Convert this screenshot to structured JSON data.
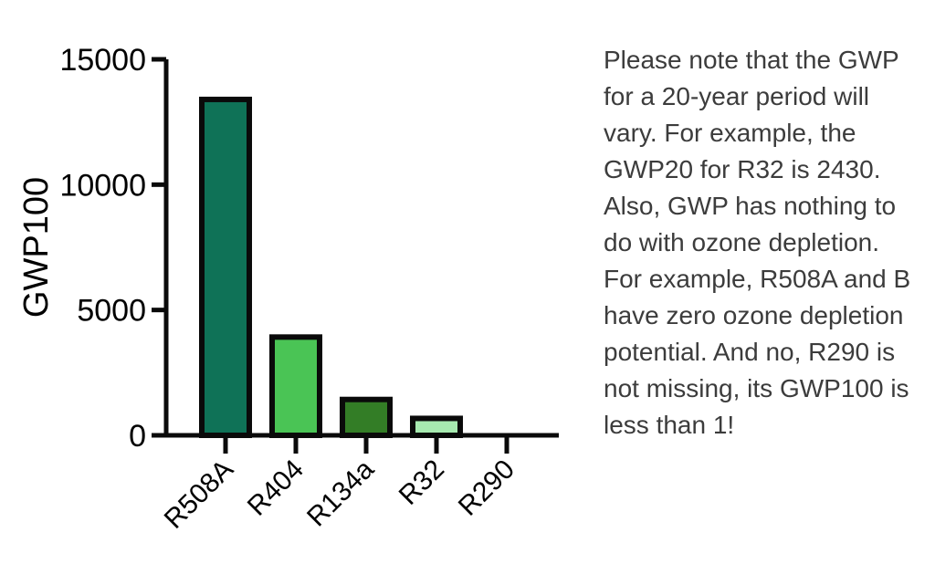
{
  "note": {
    "text": "Please note that the GWP\nfor a 20-year period will\nvary. For example, the\nGWP20 for R32 is 2430.\nAlso, GWP has nothing to\ndo with ozone depletion.\nFor example, R508A and B\nhave zero ozone depletion\npotential. And no, R290 is\nnot missing, its GWP100 is\nless than 1!"
  },
  "chart_data": {
    "type": "bar",
    "title": "",
    "xlabel": "",
    "ylabel": "GWP100",
    "categories": [
      "R508A",
      "R404",
      "R134a",
      "R32",
      "R290"
    ],
    "values": [
      13400,
      3920,
      1430,
      675,
      0.5
    ],
    "bar_colors": [
      "#0f7257",
      "#4ac455",
      "#337d26",
      "#a7eab0",
      "#4ac455"
    ],
    "ylim": [
      0,
      15000
    ],
    "yticks": [
      0,
      5000,
      10000,
      15000
    ],
    "grid": false,
    "legend": false,
    "bar_outline_color": "#0a0a0a",
    "axis_color": "#0a0a0a",
    "x_tick_label_rotation": 45
  },
  "colors": {
    "background": "#ffffff",
    "annotation_text": "#3c3c3c"
  }
}
